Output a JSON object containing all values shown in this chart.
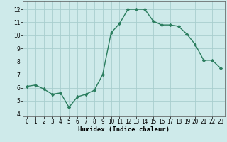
{
  "x": [
    0,
    1,
    2,
    3,
    4,
    5,
    6,
    7,
    8,
    9,
    10,
    11,
    12,
    13,
    14,
    15,
    16,
    17,
    18,
    19,
    20,
    21,
    22,
    23
  ],
  "y": [
    6.1,
    6.2,
    5.9,
    5.5,
    5.6,
    4.5,
    5.3,
    5.5,
    5.8,
    7.0,
    10.2,
    10.9,
    12.0,
    12.0,
    12.0,
    11.1,
    10.8,
    10.8,
    10.7,
    10.1,
    9.3,
    8.1,
    8.1,
    7.5
  ],
  "xlabel": "Humidex (Indice chaleur)",
  "xlim": [
    -0.5,
    23.5
  ],
  "ylim": [
    3.8,
    12.6
  ],
  "yticks": [
    4,
    5,
    6,
    7,
    8,
    9,
    10,
    11,
    12
  ],
  "xtick_labels": [
    "0",
    "1",
    "2",
    "3",
    "4",
    "5",
    "6",
    "7",
    "8",
    "9",
    "10",
    "11",
    "12",
    "13",
    "14",
    "15",
    "16",
    "17",
    "18",
    "19",
    "20",
    "21",
    "22",
    "23"
  ],
  "line_color": "#2a7d5e",
  "marker": "D",
  "marker_size": 2.2,
  "bg_color": "#ceeaea",
  "grid_color": "#a8cece",
  "line_width": 1.0,
  "tick_fontsize": 5.5,
  "xlabel_fontsize": 6.5
}
